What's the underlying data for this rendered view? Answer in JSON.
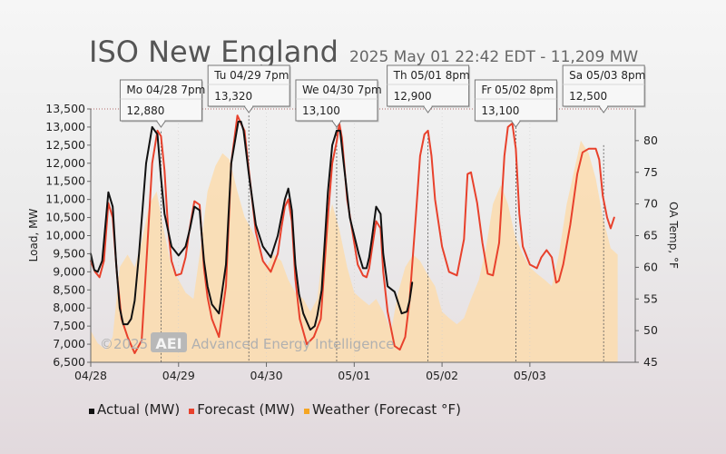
{
  "header": {
    "title": "ISO New England",
    "subtitle": "2025 May 01 22:42 EDT - 11,209 MW"
  },
  "watermark": {
    "copyright": "©2025",
    "logo": "AEI",
    "text": "Advanced Energy Intelligence"
  },
  "colors": {
    "actual": "#111111",
    "forecast": "#e8412c",
    "weather_fill": "#fbdcae",
    "weather_swatch": "#f5a623",
    "tooltip_highlight": "#cc0000"
  },
  "legend": [
    {
      "label": "Actual (MW)",
      "color": "#111111"
    },
    {
      "label": "Forecast (MW)",
      "color": "#e8412c"
    },
    {
      "label": "Weather (Forecast °F)",
      "color": "#f5a623"
    }
  ],
  "chart_data": {
    "type": "line",
    "xlabel": "",
    "ylabel": "Load, MW",
    "y2label": "OA Temp, °F",
    "xlim": [
      0,
      6.2
    ],
    "ylim": [
      6500,
      13500
    ],
    "y2lim": [
      45,
      85
    ],
    "x_ticks": [
      {
        "label": "04/28",
        "x": 0
      },
      {
        "label": "04/29",
        "x": 1
      },
      {
        "label": "04/30",
        "x": 2
      },
      {
        "label": "05/01",
        "x": 3
      },
      {
        "label": "05/02",
        "x": 4
      },
      {
        "label": "05/03",
        "x": 5
      }
    ],
    "y_ticks": [
      6500,
      7000,
      7500,
      8000,
      8500,
      9000,
      9500,
      10000,
      10500,
      11000,
      11500,
      12000,
      12500,
      13000,
      13500
    ],
    "y_tick_labels": [
      "6,500",
      "7,000",
      "7,500",
      "8,000",
      "8,500",
      "9,000",
      "9,500",
      "10,000",
      "10,500",
      "11,000",
      "11,500",
      "12,000",
      "12,500",
      "13,000",
      "13,500"
    ],
    "y2_ticks": [
      45,
      50,
      55,
      60,
      65,
      70,
      75,
      80
    ],
    "series": [
      {
        "name": "Actual (MW)",
        "x": [
          0,
          0.04,
          0.08,
          0.13,
          0.2,
          0.25,
          0.29,
          0.33,
          0.37,
          0.42,
          0.46,
          0.5,
          0.55,
          0.63,
          0.7,
          0.76,
          0.8,
          0.84,
          0.92,
          1,
          1.08,
          1.13,
          1.18,
          1.24,
          1.29,
          1.33,
          1.38,
          1.46,
          1.54,
          1.6,
          1.68,
          1.71,
          1.74,
          1.8,
          1.88,
          1.96,
          2.05,
          2.13,
          2.17,
          2.21,
          2.25,
          2.29,
          2.33,
          2.37,
          2.42,
          2.5,
          2.55,
          2.58,
          2.63,
          2.7,
          2.75,
          2.8,
          2.84,
          2.88,
          2.95,
          3.05,
          3.1,
          3.14,
          3.17,
          3.2,
          3.25,
          3.3,
          3.33,
          3.38,
          3.46,
          3.54,
          3.6,
          3.63,
          3.66
        ],
        "y": [
          9500,
          9050,
          9000,
          9300,
          11200,
          10800,
          9200,
          8000,
          7550,
          7550,
          7700,
          8200,
          9500,
          12000,
          13000,
          12800,
          11600,
          10600,
          9700,
          9450,
          9700,
          10200,
          10800,
          10700,
          9300,
          8600,
          8100,
          7850,
          9200,
          12000,
          13150,
          13150,
          12900,
          11700,
          10300,
          9700,
          9400,
          10000,
          10500,
          11000,
          11300,
          10700,
          9200,
          8400,
          7850,
          7400,
          7500,
          7800,
          8500,
          11200,
          12500,
          12900,
          12900,
          12000,
          10500,
          9500,
          9100,
          9100,
          9400,
          9900,
          10800,
          10600,
          9500,
          8600,
          8450,
          7850,
          7900,
          8200,
          8700
        ]
      },
      {
        "name": "Forecast (MW)",
        "x": [
          0,
          0.05,
          0.1,
          0.15,
          0.2,
          0.25,
          0.3,
          0.35,
          0.42,
          0.5,
          0.58,
          0.64,
          0.7,
          0.76,
          0.8,
          0.84,
          0.88,
          0.92,
          0.97,
          1.03,
          1.08,
          1.12,
          1.18,
          1.24,
          1.29,
          1.33,
          1.38,
          1.46,
          1.54,
          1.6,
          1.67,
          1.71,
          1.75,
          1.8,
          1.88,
          1.96,
          2.05,
          2.13,
          2.17,
          2.21,
          2.25,
          2.29,
          2.33,
          2.38,
          2.46,
          2.54,
          2.62,
          2.7,
          2.75,
          2.8,
          2.83,
          2.86,
          2.92,
          3.04,
          3.1,
          3.14,
          3.17,
          3.2,
          3.25,
          3.3,
          3.33,
          3.38,
          3.46,
          3.52,
          3.58,
          3.63,
          3.7,
          3.75,
          3.8,
          3.84,
          3.88,
          3.92,
          4,
          4.08,
          4.17,
          4.25,
          4.29,
          4.33,
          4.4,
          4.46,
          4.52,
          4.58,
          4.65,
          4.71,
          4.75,
          4.8,
          4.84,
          4.88,
          4.92,
          5,
          5.08,
          5.13,
          5.19,
          5.25,
          5.3,
          5.33,
          5.38,
          5.46,
          5.54,
          5.6,
          5.67,
          5.75,
          5.79,
          5.83,
          5.88,
          5.92,
          5.96
        ],
        "y": [
          9300,
          9000,
          8850,
          9300,
          10900,
          10500,
          8900,
          7700,
          7200,
          6750,
          7100,
          9500,
          12000,
          12900,
          12750,
          11800,
          10200,
          9300,
          8900,
          8950,
          9400,
          10100,
          10950,
          10850,
          9100,
          8300,
          7700,
          7200,
          8600,
          12000,
          13320,
          13100,
          12900,
          11800,
          10100,
          9300,
          9000,
          9500,
          10200,
          10800,
          11000,
          10400,
          8800,
          7700,
          7000,
          7200,
          7700,
          10500,
          12000,
          12600,
          13100,
          12700,
          11000,
          9200,
          8900,
          8850,
          9100,
          9600,
          10400,
          10200,
          9000,
          7900,
          6950,
          6850,
          7200,
          8200,
          10500,
          12200,
          12800,
          12900,
          12200,
          11000,
          9700,
          9000,
          8900,
          9900,
          11700,
          11750,
          10900,
          9800,
          8950,
          8900,
          9800,
          12200,
          13000,
          13100,
          12400,
          10600,
          9700,
          9200,
          9100,
          9400,
          9600,
          9400,
          8700,
          8750,
          9200,
          10300,
          11700,
          12300,
          12400,
          12400,
          12100,
          11100,
          10500,
          10200,
          10500
        ]
      },
      {
        "name": "Weather (Forecast °F)",
        "x": [
          0,
          0.08,
          0.17,
          0.25,
          0.33,
          0.42,
          0.5,
          0.58,
          0.67,
          0.75,
          0.83,
          0.92,
          1,
          1.08,
          1.17,
          1.25,
          1.33,
          1.42,
          1.5,
          1.58,
          1.67,
          1.75,
          1.83,
          1.92,
          2,
          2.08,
          2.17,
          2.25,
          2.33,
          2.42,
          2.5,
          2.58,
          2.67,
          2.75,
          2.83,
          2.92,
          3,
          3.08,
          3.17,
          3.25,
          3.33,
          3.42,
          3.5,
          3.58,
          3.67,
          3.75,
          3.83,
          3.92,
          4,
          4.08,
          4.17,
          4.25,
          4.33,
          4.42,
          4.5,
          4.58,
          4.67,
          4.75,
          4.83,
          4.92,
          5,
          5.08,
          5.17,
          5.25,
          5.33,
          5.42,
          5.5,
          5.58,
          5.67,
          5.75,
          5.83,
          5.92,
          6
        ],
        "y": [
          50,
          48,
          47,
          49,
          60,
          62,
          60,
          64,
          70,
          72,
          66,
          60,
          58,
          56,
          55,
          63,
          72,
          76,
          78,
          77,
          72,
          68,
          66,
          63,
          60,
          62,
          61,
          58,
          56,
          55,
          53,
          55,
          66,
          70,
          66,
          60,
          56,
          55,
          54,
          55,
          53,
          50,
          56,
          60,
          62,
          61,
          59,
          57,
          53,
          52,
          51,
          52,
          55,
          58,
          63,
          70,
          73,
          70,
          65,
          62,
          60,
          59,
          58,
          57,
          62,
          70,
          75,
          80,
          78,
          74,
          68,
          63,
          62
        ]
      }
    ],
    "annotations": [
      {
        "label": "Mo 04/28 7pm",
        "value": "12,880",
        "x": 0.8,
        "highlight": false
      },
      {
        "label": "Tu 04/29 7pm",
        "value": "13,320",
        "x": 1.8,
        "highlight": false
      },
      {
        "label": "We 04/30 7pm",
        "value": "13,100",
        "x": 2.8,
        "highlight": false
      },
      {
        "label": "Th 05/01 8pm",
        "value": "12,900",
        "x": 3.84,
        "highlight": true
      },
      {
        "label": "Fr 05/02 8pm",
        "value": "13,100",
        "x": 4.84,
        "highlight": false
      },
      {
        "label": "Sa 05/03 8pm",
        "value": "12,500",
        "x": 5.84,
        "highlight": false
      }
    ]
  }
}
